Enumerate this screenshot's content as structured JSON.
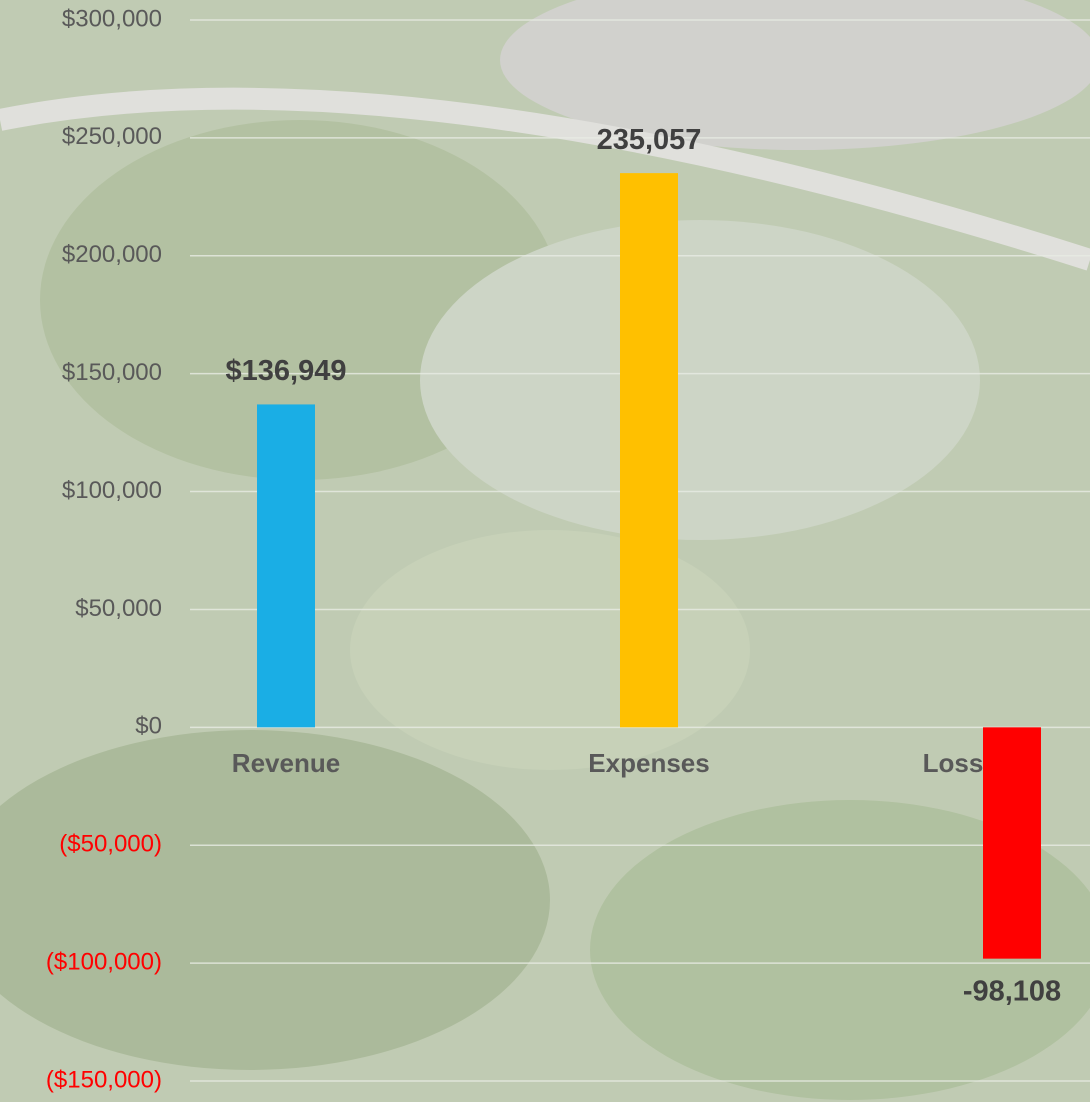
{
  "chart_data": {
    "type": "bar",
    "categories": [
      "Revenue",
      "Expenses",
      "Loss"
    ],
    "values": [
      136949,
      235057,
      -98108
    ],
    "value_labels": [
      "$136,949",
      "235,057",
      "-98,108"
    ],
    "colors": [
      "#1aaee5",
      "#ffc000",
      "#ff0000"
    ],
    "ylim": [
      -150000,
      300000
    ],
    "yticks": [
      {
        "value": -150000,
        "label": "($150,000)"
      },
      {
        "value": -100000,
        "label": "($100,000)"
      },
      {
        "value": -50000,
        "label": "($50,000)"
      },
      {
        "value": 0,
        "label": "$0"
      },
      {
        "value": 50000,
        "label": "$50,000"
      },
      {
        "value": 100000,
        "label": "$100,000"
      },
      {
        "value": 150000,
        "label": "$150,000"
      },
      {
        "value": 200000,
        "label": "$200,000"
      },
      {
        "value": 250000,
        "label": "$250,000"
      },
      {
        "value": 300000,
        "label": "$300,000"
      }
    ],
    "grid": true,
    "tick_color": "#595959",
    "negative_tick_color": "#ff0000"
  }
}
